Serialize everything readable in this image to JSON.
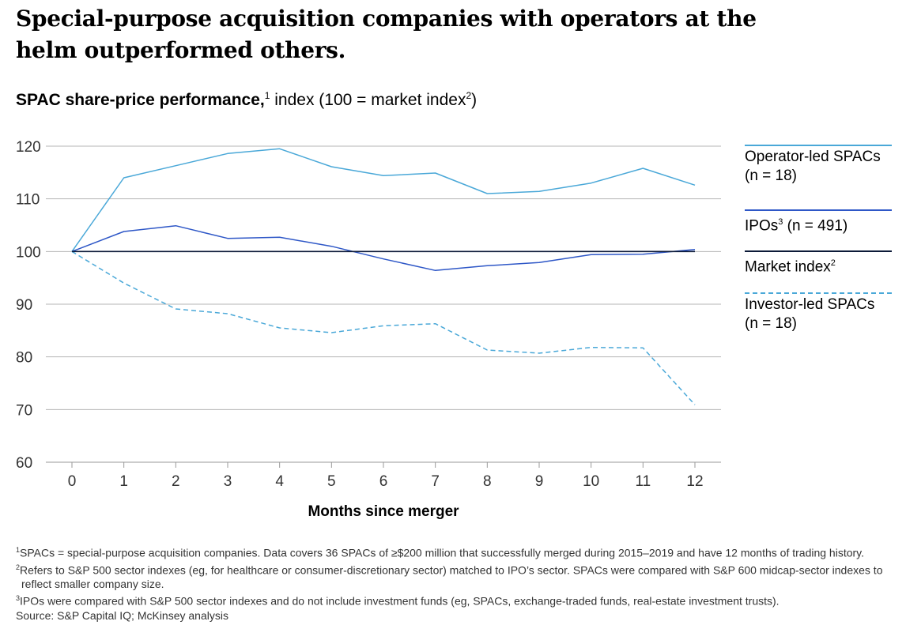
{
  "title": "Special-purpose acquisition companies with operators at the helm outperformed others.",
  "subtitle": {
    "bold": "SPAC share-price performance,",
    "bold_sup": "1",
    "normal": " index (100 = market index",
    "normal_sup": "2",
    "close": ")"
  },
  "chart_data": {
    "type": "line",
    "title": "SPAC share-price performance, index (100 = market index)",
    "xlabel": "Months since merger",
    "ylabel": "",
    "x": [
      0,
      1,
      2,
      3,
      4,
      5,
      6,
      7,
      8,
      9,
      10,
      11,
      12
    ],
    "xlim": [
      0,
      12
    ],
    "ylim": [
      60,
      120
    ],
    "yticks": [
      60,
      70,
      80,
      90,
      100,
      110,
      120
    ],
    "grid": true,
    "legend_position": "right",
    "series": [
      {
        "name": "Operator-led SPACs",
        "sub": "(n = 18)",
        "color": "#4aa8d8",
        "dash": "solid",
        "values": [
          100,
          114,
          116.3,
          118.6,
          119.5,
          116.1,
          114.4,
          114.9,
          111,
          111.4,
          113,
          115.8,
          112.6
        ]
      },
      {
        "name": "IPOs",
        "sup": "3",
        "sub": " (n = 491)",
        "color": "#2e57c7",
        "dash": "solid",
        "values": [
          100,
          103.8,
          104.9,
          102.5,
          102.7,
          101,
          98.6,
          96.4,
          97.3,
          97.9,
          99.4,
          99.5,
          100.4
        ]
      },
      {
        "name": "Market index",
        "sup": "2",
        "color": "#0c1a38",
        "dash": "solid",
        "values": [
          100,
          100,
          100,
          100,
          100,
          100,
          100,
          100,
          100,
          100,
          100,
          100,
          100
        ]
      },
      {
        "name": "Investor-led SPACs",
        "sub": "(n = 18)",
        "color": "#4aa8d8",
        "dash": "dashed",
        "values": [
          100,
          94,
          89.1,
          88.2,
          85.5,
          84.6,
          85.9,
          86.3,
          81.3,
          80.7,
          81.8,
          81.7,
          70.9
        ]
      }
    ]
  },
  "legend": {
    "operator": {
      "line1": "Operator-led SPACs",
      "line2": "(n = 18)"
    },
    "ipos": {
      "text": "IPOs",
      "sup": "3",
      "after": " (n = 491)"
    },
    "market": {
      "text": "Market index",
      "sup": "2"
    },
    "investor": {
      "line1": "Investor-led SPACs",
      "line2": "(n = 18)"
    }
  },
  "footnotes": [
    {
      "sup": "1",
      "text": "SPACs = special-purpose acquisition companies. Data covers 36 SPACs of ≥$200 million that successfully merged during 2015–2019 and have 12 months of trading history."
    },
    {
      "sup": "2",
      "text": "Refers to S&P 500 sector indexes (eg, for healthcare or consumer-discretionary sector) matched to IPO’s sector. SPACs were compared with S&P 600 midcap-sector indexes to reflect smaller company size."
    },
    {
      "sup": "3",
      "text": "IPOs were compared with S&P 500 sector indexes and do not include investment funds (eg, SPACs, exchange-traded funds, real-estate investment trusts)."
    }
  ],
  "source": "Source: S&P Capital IQ; McKinsey analysis"
}
